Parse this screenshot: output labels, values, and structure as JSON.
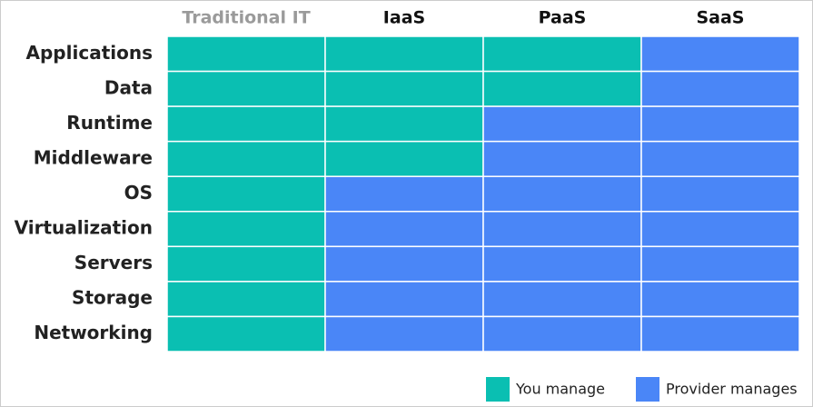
{
  "columns": [
    "Traditional IT",
    "IaaS",
    "PaaS",
    "SaaS"
  ],
  "rows": [
    "Applications",
    "Data",
    "Runtime",
    "Middleware",
    "OS",
    "Virtualization",
    "Servers",
    "Storage",
    "Networking"
  ],
  "legend": [
    {
      "label": "You manage",
      "color": "#0abfb2"
    },
    {
      "label": "Provider manages",
      "color": "#4a86f7"
    }
  ],
  "cells": [
    [
      0,
      0,
      0,
      1
    ],
    [
      0,
      0,
      0,
      1
    ],
    [
      0,
      0,
      1,
      1
    ],
    [
      0,
      0,
      1,
      1
    ],
    [
      0,
      1,
      1,
      1
    ],
    [
      0,
      1,
      1,
      1
    ],
    [
      0,
      1,
      1,
      1
    ],
    [
      0,
      1,
      1,
      1
    ],
    [
      0,
      1,
      1,
      1
    ]
  ]
}
